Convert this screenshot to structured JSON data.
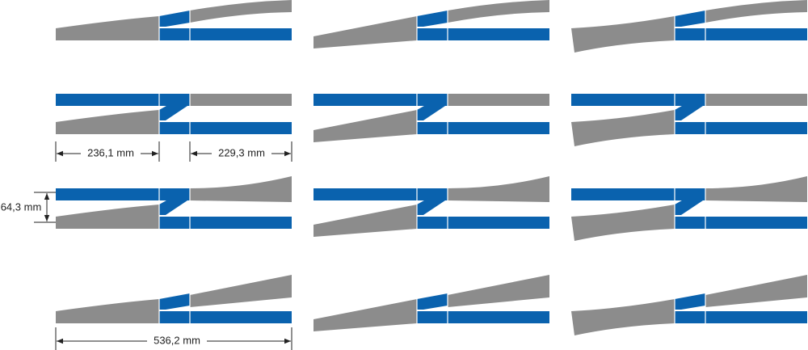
{
  "dimensions": [
    "236,1 mm",
    "229,3 mm",
    "64,3 mm",
    "536,2 mm"
  ]
}
